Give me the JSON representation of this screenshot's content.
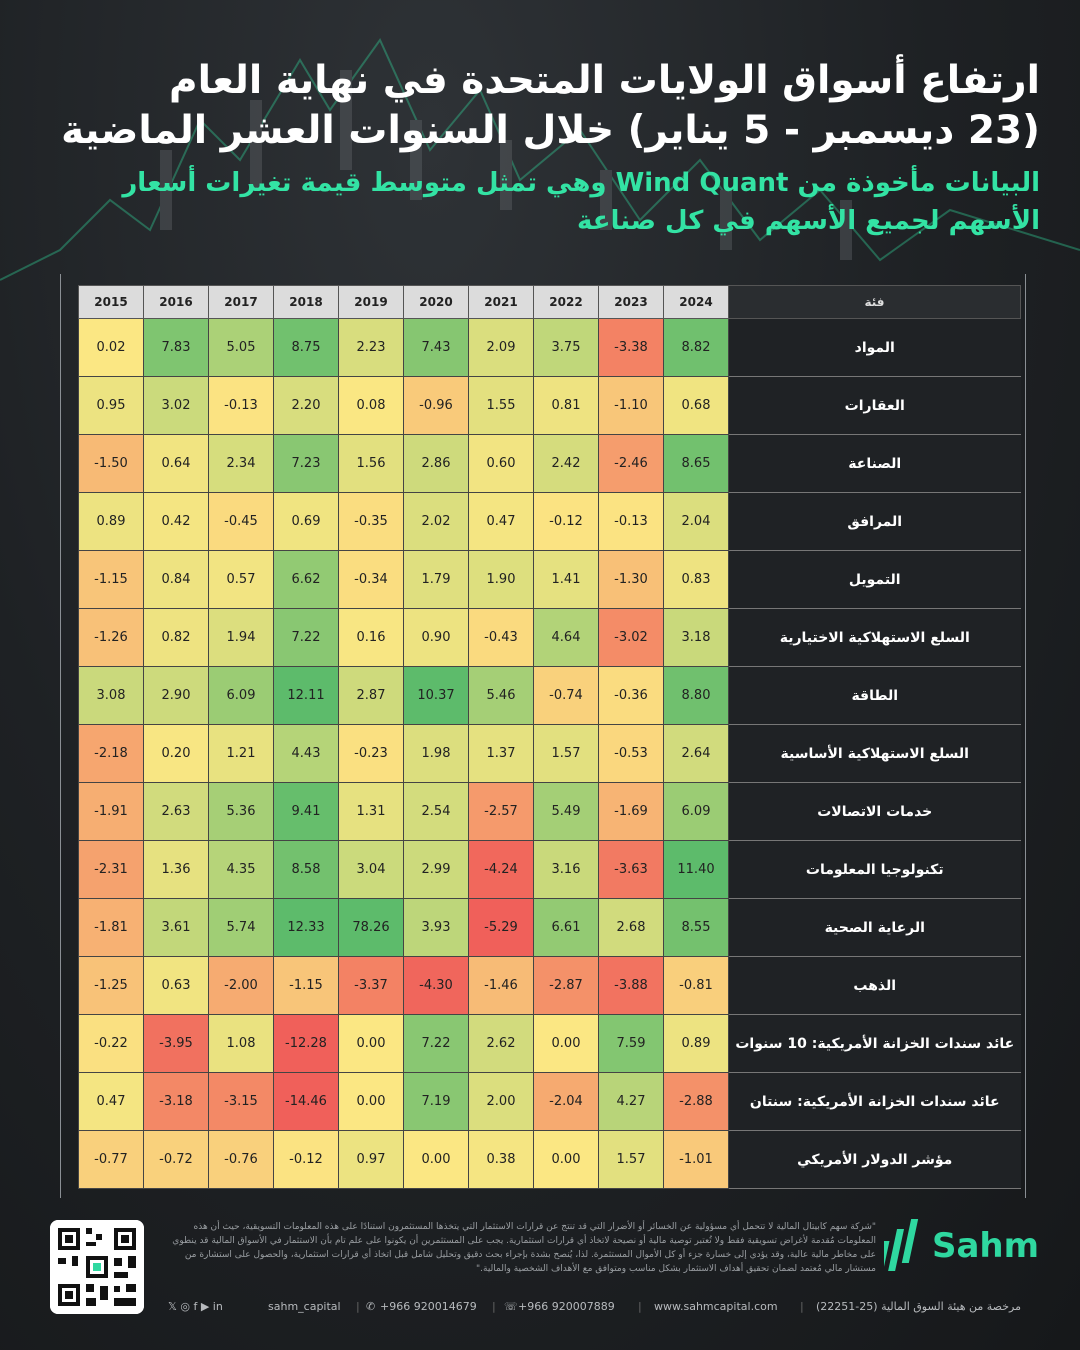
{
  "title": {
    "line1": "ارتفاع أسواق الولايات المتحدة في نهاية العام",
    "line2": "(23 ديسمبر - 5 يناير) خلال السنوات العشر الماضية",
    "sub1": "البيانات مأخوذة من Wind Quant وهي تمثل متوسط قيمة تغيرات أسعار",
    "sub2": "الأسهم لجميع الأسهم في كل صناعة"
  },
  "chart_data": {
    "type": "heatmap",
    "category_header": "فئة",
    "years": [
      "2015",
      "2016",
      "2017",
      "2018",
      "2019",
      "2020",
      "2021",
      "2022",
      "2023",
      "2024"
    ],
    "rows": [
      {
        "category": "المواد",
        "values": [
          0.02,
          7.83,
          5.05,
          8.75,
          2.23,
          7.43,
          2.09,
          3.75,
          -3.38,
          8.82
        ]
      },
      {
        "category": "العقارات",
        "values": [
          0.95,
          3.02,
          -0.13,
          2.2,
          0.08,
          -0.96,
          1.55,
          0.81,
          -1.1,
          0.68
        ]
      },
      {
        "category": "الصناعة",
        "values": [
          -1.5,
          0.64,
          2.34,
          7.23,
          1.56,
          2.86,
          0.6,
          2.42,
          -2.46,
          8.65
        ]
      },
      {
        "category": "المرافق",
        "values": [
          0.89,
          0.42,
          -0.45,
          0.69,
          -0.35,
          2.02,
          0.47,
          -0.12,
          -0.13,
          2.04
        ]
      },
      {
        "category": "التمويل",
        "values": [
          -1.15,
          0.84,
          0.57,
          6.62,
          -0.34,
          1.79,
          1.9,
          1.41,
          -1.3,
          0.83
        ]
      },
      {
        "category": "السلع الاستهلاكية الاختيارية",
        "values": [
          -1.26,
          0.82,
          1.94,
          7.22,
          0.16,
          0.9,
          -0.43,
          4.64,
          -3.02,
          3.18
        ]
      },
      {
        "category": "الطاقة",
        "values": [
          3.08,
          2.9,
          6.09,
          12.11,
          2.87,
          10.37,
          5.46,
          -0.74,
          -0.36,
          8.8
        ]
      },
      {
        "category": "السلع الاستهلاكية الأساسية",
        "values": [
          -2.18,
          0.2,
          1.21,
          4.43,
          -0.23,
          1.98,
          1.37,
          1.57,
          -0.53,
          2.64
        ]
      },
      {
        "category": "خدمات الاتصالات",
        "values": [
          -1.91,
          2.63,
          5.36,
          9.41,
          1.31,
          2.54,
          -2.57,
          5.49,
          -1.69,
          6.09
        ]
      },
      {
        "category": "تكنولوجيا المعلومات",
        "values": [
          -2.31,
          1.36,
          4.35,
          8.58,
          3.04,
          2.99,
          -4.24,
          3.16,
          -3.63,
          11.4
        ]
      },
      {
        "category": "الرعاية الصحية",
        "values": [
          -1.81,
          3.61,
          5.74,
          12.33,
          78.26,
          3.93,
          -5.29,
          6.61,
          2.68,
          8.55
        ]
      },
      {
        "category": "الذهب",
        "values": [
          -1.25,
          0.63,
          -2.0,
          -1.15,
          -3.37,
          -4.3,
          -1.46,
          -2.87,
          -3.88,
          -0.81
        ]
      },
      {
        "category": "عائد سندات الخزانة الأمريكية: 10 سنوات",
        "values": [
          -0.22,
          -3.95,
          1.08,
          -12.28,
          0.0,
          7.22,
          2.62,
          0.0,
          7.59,
          0.89
        ]
      },
      {
        "category": "عائد سندات الخزانة الأمريكية: سنتان",
        "values": [
          0.47,
          -3.18,
          -3.15,
          -14.46,
          0.0,
          7.19,
          2.0,
          -2.04,
          4.27,
          -2.88
        ]
      },
      {
        "category": "مؤشر الدولار الأمريكي",
        "values": [
          -0.77,
          -0.72,
          -0.76,
          -0.12,
          0.97,
          0.0,
          0.38,
          0.0,
          1.57,
          -1.01
        ]
      }
    ],
    "colors": {
      "low": "#f0605a",
      "mid": "#fbe783",
      "high": "#5dbb6b"
    }
  },
  "footer": {
    "brand": "Sahm",
    "disclaimer": "\"شركة سهم كابيتال المالية لا تتحمل أي مسؤولية عن الخسائر أو الأضرار التي قد تنتج عن قرارات الاستثمار التي يتخذها المستثمرون استنادًا على هذه المعلومات التسويقية، حيث أن هذه المعلومات مُقدمة لأغراض تسويقية فقط ولا تُعتبر توصية مالية أو نصيحة لاتخاذ أي قرارات استثمارية. يجب على المستثمرين أن يكونوا على علم تام بأن الاستثمار في الأسواق المالية قد ينطوي على مخاطر مالية عالية، وقد يؤدي إلى خسارة جزء أو كل الأموال المستثمرة. لذا، يُنصح بشدة بإجراء بحث دقيق وتحليل شامل قبل اتخاذ أي قرارات استثمارية، والحصول على استشارة من مستشار مالي مُعتمد لضمان تحقيق أهداف الاستثمار بشكل مناسب ومتوافق مع الأهداف الشخصية والمالية.\"",
    "social_handle": "sahm_capital",
    "whatsapp": "+966 920014679",
    "phone": "+966 920007889",
    "website": "www.sahmcapital.com",
    "license": "مرخصة من هيئة السوق المالية (25-22251)"
  }
}
